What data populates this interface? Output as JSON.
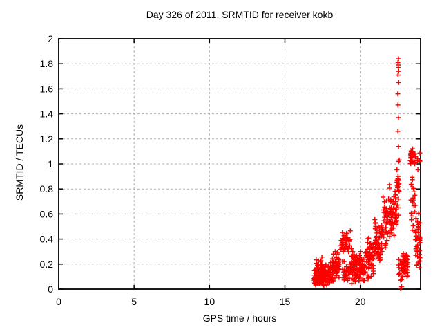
{
  "chart_data": {
    "type": "scatter",
    "title": "Day 326 of 2011, SRMTID for receiver kokb",
    "xlabel": "GPS time / hours",
    "ylabel": "SRMTID / TECUs",
    "xlim": [
      0,
      24
    ],
    "ylim": [
      0,
      2
    ],
    "xticks": [
      0,
      5,
      10,
      15,
      20
    ],
    "xtick_labels": [
      "0",
      "5",
      "10",
      "15",
      "20"
    ],
    "yticks": [
      0,
      0.2,
      0.4,
      0.6,
      0.8,
      1,
      1.2,
      1.4,
      1.6,
      1.8,
      2
    ],
    "ytick_labels": [
      "0",
      "0.2",
      "0.4",
      "0.6",
      "0.8",
      "1",
      "1.2",
      "1.4",
      "1.6",
      "1.8",
      "2"
    ],
    "grid": true,
    "legend": "none",
    "marker": {
      "shape": "plus",
      "color": "#ff0000",
      "size": 7
    },
    "series": [
      {
        "name": "SRMTID",
        "x_range_hours": [
          16.9,
          24.0
        ],
        "peak": {
          "x": 22.52,
          "y": 1.84
        },
        "spike_column": {
          "x": 22.52,
          "values": [
            1.84,
            1.81,
            1.79,
            1.77,
            1.74,
            1.71,
            1.65,
            1.56,
            1.47,
            1.37,
            1.26,
            1.14,
            1.02,
            0.9,
            0.79,
            0.72,
            0.65
          ]
        },
        "isolated_points": [
          [
            22.68,
            0.005
          ],
          [
            22.74,
            0.02
          ]
        ],
        "clusters": [
          {
            "x": [
              16.9,
              17.6
            ],
            "y": [
              0.01,
              0.16
            ],
            "n": 80
          },
          {
            "x": [
              17.05,
              17.55
            ],
            "y": [
              0.13,
              0.26
            ],
            "n": 28
          },
          {
            "x": [
              17.55,
              18.2
            ],
            "y": [
              0.02,
              0.22
            ],
            "n": 70
          },
          {
            "x": [
              18.15,
              18.6
            ],
            "y": [
              0.05,
              0.32
            ],
            "n": 48
          },
          {
            "x": [
              18.65,
              19.35
            ],
            "y": [
              0.26,
              0.47
            ],
            "n": 45
          },
          {
            "x": [
              18.8,
              19.4
            ],
            "y": [
              0.05,
              0.26
            ],
            "n": 38
          },
          {
            "x": [
              19.4,
              20.35
            ],
            "y": [
              0.04,
              0.33
            ],
            "n": 115
          },
          {
            "x": [
              20.35,
              20.9
            ],
            "y": [
              0.05,
              0.46
            ],
            "n": 60
          },
          {
            "x": [
              20.9,
              21.5
            ],
            "y": [
              0.18,
              0.58
            ],
            "n": 58
          },
          {
            "x": [
              21.5,
              22.05
            ],
            "y": [
              0.28,
              0.88
            ],
            "n": 55
          },
          {
            "x": [
              22.05,
              22.42
            ],
            "y": [
              0.4,
              0.8
            ],
            "n": 48
          },
          {
            "x": [
              22.42,
              22.6
            ],
            "y": [
              0.55,
              1.08
            ],
            "n": 16
          },
          {
            "x": [
              22.55,
              23.2
            ],
            "y": [
              0.05,
              0.3
            ],
            "n": 65
          },
          {
            "x": [
              23.3,
              23.65
            ],
            "y": [
              0.97,
              1.13
            ],
            "n": 30
          },
          {
            "x": [
              23.35,
              23.65
            ],
            "y": [
              0.4,
              0.97
            ],
            "n": 22
          },
          {
            "x": [
              23.65,
              23.97
            ],
            "y": [
              0.12,
              0.65
            ],
            "n": 42
          },
          {
            "x": [
              23.8,
              23.97
            ],
            "y": [
              0.95,
              1.1
            ],
            "n": 7
          }
        ],
        "render_seed": 20111126
      }
    ]
  },
  "colors": {
    "marker": "#ff0000",
    "grid": "#b0b0b0",
    "axis": "#000000",
    "text": "#000000",
    "background": "#ffffff"
  }
}
